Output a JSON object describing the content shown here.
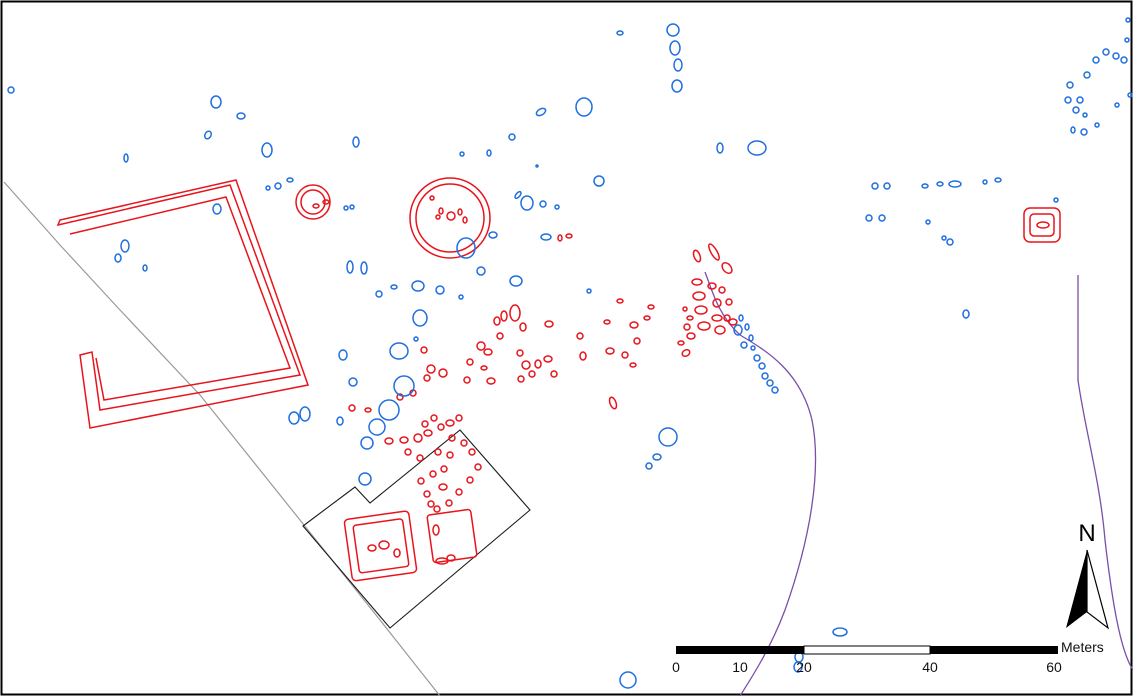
{
  "map": {
    "north_label": "N",
    "scale_unit": "Meters",
    "scale_ticks": [
      "0",
      "10",
      "20",
      "40",
      "60"
    ],
    "scale_values": [
      0,
      10,
      20,
      40,
      60
    ],
    "layers": [
      {
        "name": "small-features",
        "color": "#1f6fe0"
      },
      {
        "name": "highlighted-features",
        "color": "#e8141c"
      },
      {
        "name": "excavation-boundary",
        "color": "#1a1a1a"
      },
      {
        "name": "path-line",
        "color": "#9a9a9a"
      },
      {
        "name": "stream-line",
        "color": "#7b4fa8"
      }
    ],
    "north_arrow_icon": "north-arrow-icon"
  }
}
